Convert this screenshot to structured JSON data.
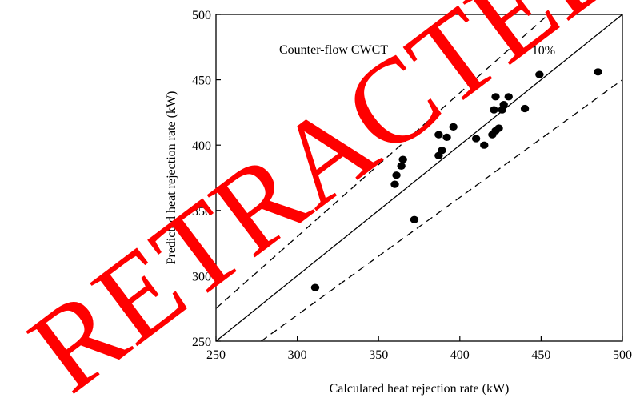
{
  "chart_data": {
    "type": "scatter",
    "xlabel": "Calculated heat rejection rate (kW)",
    "ylabel": "Predicted heat rejection rate (kW)",
    "xlim": [
      250,
      500
    ],
    "ylim": [
      250,
      500
    ],
    "x_ticks": [
      250,
      300,
      350,
      400,
      450,
      500
    ],
    "y_ticks": [
      250,
      300,
      350,
      400,
      450,
      500
    ],
    "grid": false,
    "annotations": {
      "label": "Counter-flow CWCT",
      "band": "± 10%"
    },
    "reference_lines": [
      {
        "kind": "solid",
        "slope": 1.0
      },
      {
        "kind": "dashed",
        "slope": 1.1
      },
      {
        "kind": "dashed",
        "slope": 0.9
      }
    ],
    "points": [
      {
        "x": 311,
        "y": 291
      },
      {
        "x": 360,
        "y": 370
      },
      {
        "x": 361,
        "y": 377
      },
      {
        "x": 364,
        "y": 384
      },
      {
        "x": 365,
        "y": 389
      },
      {
        "x": 372,
        "y": 343
      },
      {
        "x": 387,
        "y": 392
      },
      {
        "x": 387,
        "y": 408
      },
      {
        "x": 389,
        "y": 396
      },
      {
        "x": 392,
        "y": 406
      },
      {
        "x": 396,
        "y": 414
      },
      {
        "x": 410,
        "y": 405
      },
      {
        "x": 415,
        "y": 400
      },
      {
        "x": 420,
        "y": 408
      },
      {
        "x": 421,
        "y": 427
      },
      {
        "x": 422,
        "y": 437
      },
      {
        "x": 422,
        "y": 411
      },
      {
        "x": 424,
        "y": 413
      },
      {
        "x": 426,
        "y": 427
      },
      {
        "x": 427,
        "y": 431
      },
      {
        "x": 430,
        "y": 437
      },
      {
        "x": 440,
        "y": 428
      },
      {
        "x": 449,
        "y": 454
      },
      {
        "x": 485,
        "y": 456
      }
    ]
  },
  "watermark": {
    "text": "RETRACTED",
    "color": "#ff0000"
  }
}
